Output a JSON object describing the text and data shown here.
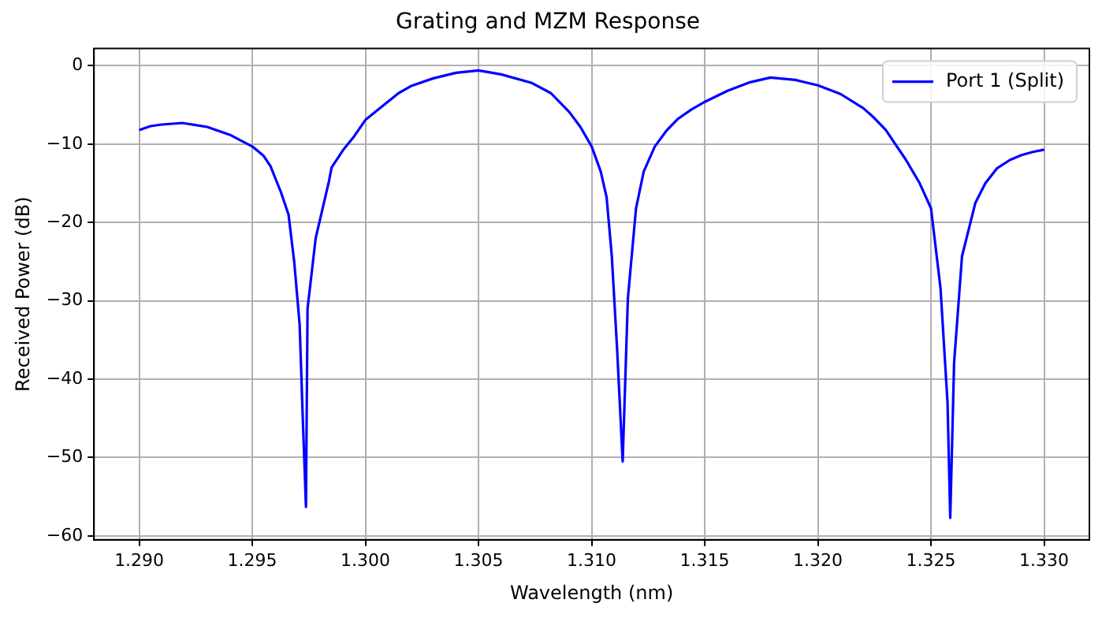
{
  "chart_data": {
    "type": "line",
    "title": "Grating and MZM Response",
    "xlabel": "Wavelength (nm)",
    "ylabel": "Received Power (dB)",
    "xlim": [
      1.288,
      1.332
    ],
    "xticks": [
      {
        "value": 1.29,
        "label": "1.290"
      },
      {
        "value": 1.295,
        "label": "1.295"
      },
      {
        "value": 1.3,
        "label": "1.300"
      },
      {
        "value": 1.305,
        "label": "1.305"
      },
      {
        "value": 1.31,
        "label": "1.310"
      },
      {
        "value": 1.315,
        "label": "1.315"
      },
      {
        "value": 1.32,
        "label": "1.320"
      },
      {
        "value": 1.325,
        "label": "1.325"
      },
      {
        "value": 1.33,
        "label": "1.330"
      }
    ],
    "ylim": [
      -60.5,
      2.2
    ],
    "yticks": [
      -60,
      -50,
      -40,
      -30,
      -20,
      -10,
      0
    ],
    "grid": true,
    "legend": "top right",
    "line_style": "solid",
    "marker": "none",
    "series": [
      {
        "name": "Port 1 (Split)",
        "color": "#0000ff",
        "x": [
          1.29,
          1.2905,
          1.291,
          1.2919,
          1.293,
          1.294,
          1.295,
          1.2955,
          1.2958,
          1.29626,
          1.2966,
          1.29685,
          1.29709,
          1.29723,
          1.29737,
          1.29744,
          1.2978,
          1.29839,
          1.2985,
          1.299,
          1.2995,
          1.3,
          1.30146,
          1.302,
          1.303,
          1.304,
          1.305,
          1.306,
          1.30736,
          1.3082,
          1.30901,
          1.3095,
          1.31,
          1.3104,
          1.31066,
          1.31089,
          1.31113,
          1.31137,
          1.3116,
          1.31196,
          1.3123,
          1.31279,
          1.3133,
          1.3138,
          1.3144,
          1.315,
          1.316,
          1.317,
          1.3179,
          1.319,
          1.32,
          1.321,
          1.322,
          1.32247,
          1.323,
          1.32389,
          1.3245,
          1.325,
          1.32542,
          1.32573,
          1.32585,
          1.32602,
          1.32637,
          1.32696,
          1.3274,
          1.32791,
          1.3285,
          1.329,
          1.3295,
          1.33
        ],
        "values": [
          -8.2,
          -7.7,
          -7.5,
          -7.3,
          -7.8,
          -8.8,
          -10.3,
          -11.5,
          -12.8,
          -16.1,
          -19,
          -25,
          -33,
          -45,
          -56.3,
          -31,
          -22,
          -14.7,
          -13,
          -10.8,
          -9,
          -6.9,
          -3.5,
          -2.6,
          -1.6,
          -0.9,
          -0.6,
          -1.1,
          -2.2,
          -3.5,
          -5.9,
          -7.8,
          -10.3,
          -13.5,
          -16.8,
          -24.3,
          -36.5,
          -50.5,
          -29.7,
          -18.2,
          -13.5,
          -10.3,
          -8.3,
          -6.8,
          -5.6,
          -4.6,
          -3.2,
          -2.1,
          -1.5,
          -1.8,
          -2.5,
          -3.6,
          -5.4,
          -6.6,
          -8.2,
          -12,
          -15,
          -18.2,
          -28.4,
          -43,
          -57.7,
          -37.9,
          -24.3,
          -17.5,
          -15,
          -13.1,
          -12,
          -11.4,
          -11,
          -10.7
        ]
      }
    ]
  }
}
